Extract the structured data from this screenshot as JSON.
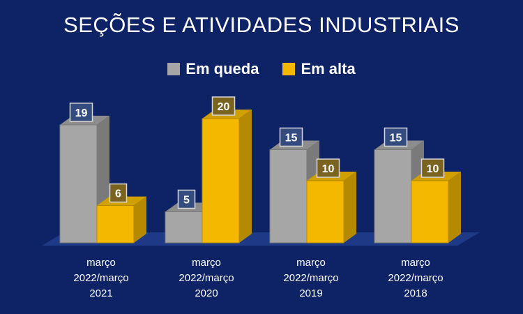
{
  "chart_data": {
    "type": "bar",
    "title": "SEÇÕES E ATIVIDADES INDUSTRIAIS",
    "categories": [
      [
        "março",
        "2022/março",
        "2021"
      ],
      [
        "março",
        "2022/março",
        "2020"
      ],
      [
        "março",
        "2022/março",
        "2019"
      ],
      [
        "março",
        "2022/março",
        "2018"
      ]
    ],
    "series": [
      {
        "name": "Em queda",
        "values": [
          19,
          5,
          15,
          15
        ],
        "color": "#a6a6a6"
      },
      {
        "name": "Em alta",
        "values": [
          6,
          20,
          10,
          10
        ],
        "color": "#f5b800"
      }
    ],
    "ylim": [
      0,
      20
    ],
    "grid": false,
    "legend": "top"
  }
}
